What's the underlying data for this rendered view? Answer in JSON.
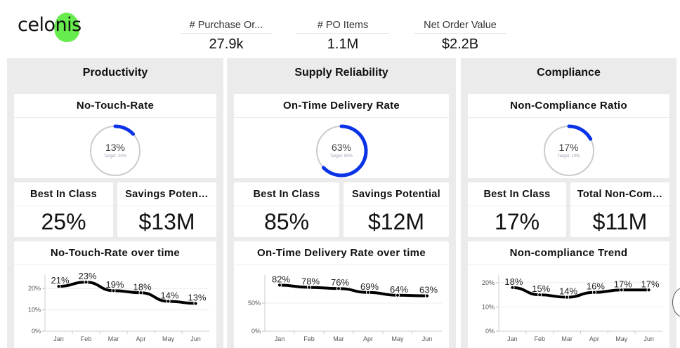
{
  "logo": {
    "text": "celonis",
    "blob_color": "#66ec4c"
  },
  "kpis": [
    {
      "label": "# Purchase Or...",
      "value": "27.9k"
    },
    {
      "label": "# PO Items",
      "value": "1.1M"
    },
    {
      "label": "Net Order Value",
      "value": "$2.2B"
    }
  ],
  "colors": {
    "gauge_fill": "#0a32e6",
    "gauge_track": "#cccccc",
    "panel_bg": "#ebebeb",
    "line": "#000000"
  },
  "panels": [
    {
      "title": "Productivity",
      "gauge": {
        "title": "No-Touch-Rate",
        "value_label": "13%",
        "target_label": "Target: 20%",
        "fraction": 0.13
      },
      "best": {
        "label": "Best In Class",
        "value": "25%"
      },
      "savings": {
        "label": "Savings Poten…",
        "value": "$13M"
      },
      "chart_title": "No-Touch-Rate over time"
    },
    {
      "title": "Supply Reliability",
      "gauge": {
        "title": "On-Time Delivery Rate",
        "value_label": "63%",
        "target_label": "Target: 80%",
        "fraction": 0.63
      },
      "best": {
        "label": "Best In Class",
        "value": "85%"
      },
      "savings": {
        "label": "Savings Potential",
        "value": "$12M"
      },
      "chart_title": "On-Time Delivery Rate over time"
    },
    {
      "title": "Compliance",
      "gauge": {
        "title": "Non-Compliance Ratio",
        "value_label": "17%",
        "target_label": "Target: 10%",
        "fraction": 0.17
      },
      "best": {
        "label": "Best In Class",
        "value": "17%"
      },
      "savings": {
        "label": "Total Non-Com…",
        "value": "$11M"
      },
      "chart_title": "Non-compliance Trend"
    }
  ],
  "chart_data": [
    {
      "type": "line",
      "title": "No-Touch-Rate over time",
      "categories": [
        "Jan",
        "Feb",
        "Mar",
        "Apr",
        "May",
        "Jun"
      ],
      "values": [
        21,
        23,
        19,
        18,
        14,
        13
      ],
      "data_labels": [
        "21%",
        "23%",
        "19%",
        "18%",
        "14%",
        "13%"
      ],
      "yticks": [
        0,
        10,
        20
      ],
      "ytick_labels": [
        "0%",
        "10%",
        "20%"
      ],
      "ylim": [
        0,
        25
      ],
      "xlabel": "",
      "ylabel": "",
      "grid": true
    },
    {
      "type": "line",
      "title": "On-Time Delivery Rate over time",
      "categories": [
        "Jan",
        "Feb",
        "Mar",
        "Apr",
        "May",
        "Jun"
      ],
      "values": [
        82,
        78,
        76,
        69,
        64,
        63
      ],
      "data_labels": [
        "82%",
        "78%",
        "76%",
        "69%",
        "64%",
        "63%"
      ],
      "yticks": [
        0,
        50
      ],
      "ytick_labels": [
        "0%",
        "50%"
      ],
      "ylim": [
        0,
        95
      ],
      "xlabel": "",
      "ylabel": "",
      "grid": true
    },
    {
      "type": "line",
      "title": "Non-compliance Trend",
      "categories": [
        "Jan",
        "Feb",
        "Mar",
        "Apr",
        "May",
        "Jun"
      ],
      "values": [
        18,
        15,
        14,
        16,
        17,
        17
      ],
      "data_labels": [
        "18%",
        "15%",
        "14%",
        "16%",
        "17%",
        "17%"
      ],
      "yticks": [
        0,
        10,
        20
      ],
      "ytick_labels": [
        "0%",
        "10%",
        "20%"
      ],
      "ylim": [
        0,
        22
      ],
      "xlabel": "",
      "ylabel": "",
      "grid": true
    }
  ]
}
